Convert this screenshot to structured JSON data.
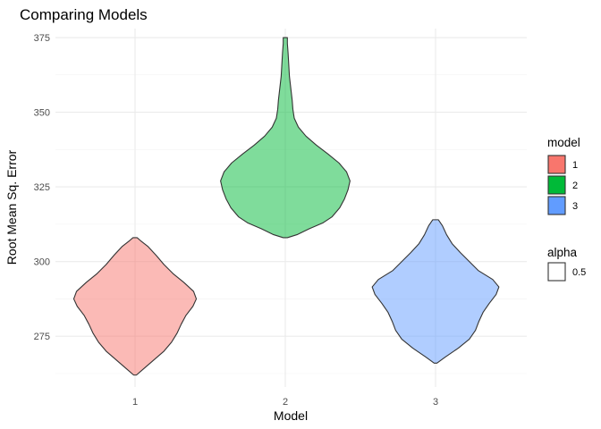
{
  "chart_data": {
    "type": "violin",
    "title": "Comparing Models",
    "xlabel": "Model",
    "ylabel": "Root Mean Sq. Error",
    "categories": [
      "1",
      "2",
      "3"
    ],
    "ylim": [
      258,
      378
    ],
    "y_ticks": [
      275,
      300,
      325,
      350,
      375
    ],
    "y_minor_ticks": [
      262.5,
      287.5,
      312.5,
      337.5,
      362.5
    ],
    "grid": true,
    "fill_alpha": 0.5,
    "series": [
      {
        "category": "1",
        "fill": "#F8766D",
        "min": 262,
        "max": 308,
        "profile": [
          [
            262,
            0.02
          ],
          [
            264,
            0.12
          ],
          [
            267,
            0.27
          ],
          [
            270,
            0.42
          ],
          [
            273,
            0.53
          ],
          [
            276,
            0.61
          ],
          [
            279,
            0.67
          ],
          [
            282,
            0.74
          ],
          [
            285,
            0.84
          ],
          [
            287.5,
            0.89
          ],
          [
            290,
            0.85
          ],
          [
            293,
            0.71
          ],
          [
            296,
            0.55
          ],
          [
            299,
            0.42
          ],
          [
            302,
            0.31
          ],
          [
            305,
            0.19
          ],
          [
            307,
            0.08
          ],
          [
            308,
            0.03
          ]
        ]
      },
      {
        "category": "2",
        "fill": "#00BA38",
        "min": 308,
        "max": 375,
        "profile": [
          [
            308,
            0.03
          ],
          [
            309,
            0.17
          ],
          [
            311,
            0.35
          ],
          [
            313,
            0.55
          ],
          [
            315,
            0.68
          ],
          [
            318,
            0.79
          ],
          [
            321,
            0.86
          ],
          [
            324,
            0.91
          ],
          [
            327,
            0.94
          ],
          [
            330,
            0.89
          ],
          [
            333,
            0.78
          ],
          [
            336,
            0.62
          ],
          [
            339,
            0.45
          ],
          [
            342,
            0.3
          ],
          [
            345,
            0.19
          ],
          [
            348,
            0.13
          ],
          [
            351,
            0.11
          ],
          [
            354,
            0.1
          ],
          [
            358,
            0.08
          ],
          [
            362,
            0.06
          ],
          [
            366,
            0.05
          ],
          [
            370,
            0.04
          ],
          [
            373,
            0.03
          ],
          [
            375,
            0.03
          ]
        ]
      },
      {
        "category": "3",
        "fill": "#619CFF",
        "min": 266,
        "max": 314,
        "profile": [
          [
            266,
            0.02
          ],
          [
            268,
            0.14
          ],
          [
            271,
            0.33
          ],
          [
            274,
            0.49
          ],
          [
            277,
            0.58
          ],
          [
            280,
            0.63
          ],
          [
            283,
            0.69
          ],
          [
            286,
            0.78
          ],
          [
            289,
            0.88
          ],
          [
            291.5,
            0.92
          ],
          [
            294,
            0.83
          ],
          [
            297,
            0.62
          ],
          [
            300,
            0.49
          ],
          [
            303,
            0.36
          ],
          [
            306,
            0.24
          ],
          [
            309,
            0.16
          ],
          [
            312,
            0.1
          ],
          [
            314,
            0.04
          ]
        ]
      }
    ],
    "legend": {
      "placement": "right",
      "model": {
        "title": "model",
        "items": [
          {
            "label": "1",
            "color": "#F8766D"
          },
          {
            "label": "2",
            "color": "#00BA38"
          },
          {
            "label": "3",
            "color": "#619CFF"
          }
        ]
      },
      "alpha": {
        "title": "alpha",
        "items": [
          {
            "label": "0.5"
          }
        ]
      }
    }
  }
}
